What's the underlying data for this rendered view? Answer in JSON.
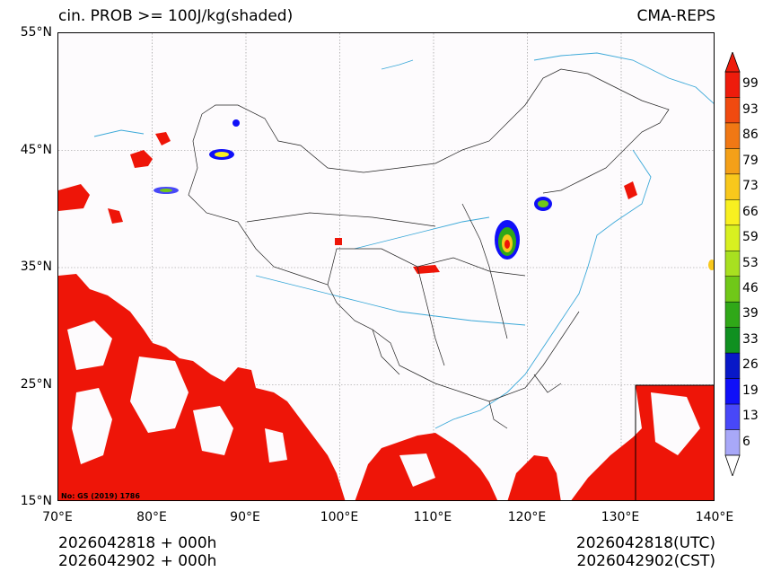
{
  "header": {
    "title": "cin. PROB >= 100J/kg(shaded)",
    "model": "CMA-REPS"
  },
  "axes": {
    "lat_labels": [
      "55°N",
      "45°N",
      "35°N",
      "25°N",
      "15°N"
    ],
    "lon_labels": [
      "70°E",
      "80°E",
      "90°E",
      "100°E",
      "110°E",
      "120°E",
      "130°E",
      "140°E"
    ]
  },
  "colorbar": {
    "levels": [
      "99",
      "93",
      "86",
      "79",
      "73",
      "66",
      "59",
      "53",
      "46",
      "39",
      "33",
      "26",
      "19",
      "13",
      "6"
    ],
    "colors": [
      "#ee1c0c",
      "#f04a10",
      "#f07814",
      "#f4a018",
      "#f8c81c",
      "#f8f020",
      "#d8f020",
      "#a8e020",
      "#70c818",
      "#30a818",
      "#109020",
      "#0818c8",
      "#1010f8",
      "#4848f8",
      "#a8a8f8"
    ]
  },
  "footer": {
    "left_line1": "2026042818  +  000h",
    "left_line2": "2026042902  +  000h",
    "right_line1": "2026042818(UTC)",
    "right_line2": "2026042902(CST)"
  },
  "map_note": "No: GS (2019) 1786"
}
